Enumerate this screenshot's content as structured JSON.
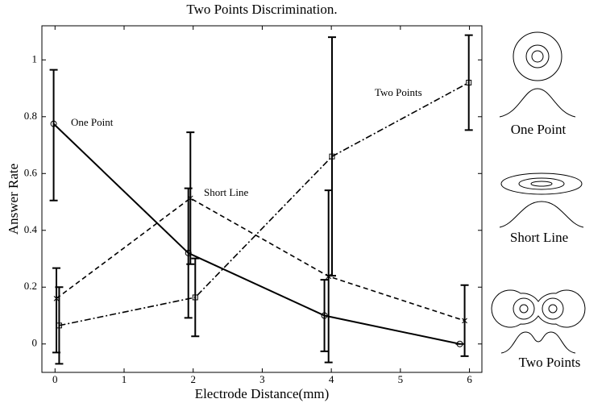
{
  "chart_data": {
    "type": "errorbar-line",
    "title": "Two Points Discrimination.",
    "x_label": "Electrode Distance(mm)",
    "y_label": "Answer Rate",
    "xlim": [
      -0.19,
      6.18
    ],
    "xticks": [
      0,
      1,
      2,
      3,
      4,
      5,
      6
    ],
    "ylim": [
      -0.1,
      1.12
    ],
    "yticks": [
      0,
      0.2,
      0.4,
      0.6,
      0.8,
      1
    ],
    "series": [
      {
        "name": "One Point",
        "color": "#000000",
        "style": "solid",
        "marker": "circle",
        "x": [
          -0.02,
          1.93,
          3.9,
          5.86
        ],
        "values": [
          0.775,
          0.32,
          0.1,
          0
        ],
        "err_minus": [
          0.27,
          0.228,
          0.126,
          0
        ],
        "err_plus": [
          0.19,
          0.228,
          0.126,
          0
        ]
      },
      {
        "name": "Short Line",
        "color": "#000000",
        "style": "dashed",
        "marker": "x",
        "x": [
          0.02,
          1.96,
          3.96,
          5.93
        ],
        "values": [
          0.16,
          0.513,
          0.238,
          0.082
        ],
        "err_minus": [
          0.19,
          0.232,
          0.303,
          0.125
        ],
        "err_plus": [
          0.107,
          0.232,
          0.303,
          0.125
        ]
      },
      {
        "name": "Two Points",
        "color": "#000000",
        "style": "dashdot",
        "marker": "square",
        "x": [
          0.06,
          2.03,
          4.01,
          5.99
        ],
        "values": [
          0.065,
          0.164,
          0.66,
          0.92
        ],
        "err_minus": [
          0.135,
          0.137,
          0.42,
          0.167
        ],
        "err_plus": [
          0.135,
          0.137,
          0.42,
          0.167
        ]
      }
    ]
  }
}
